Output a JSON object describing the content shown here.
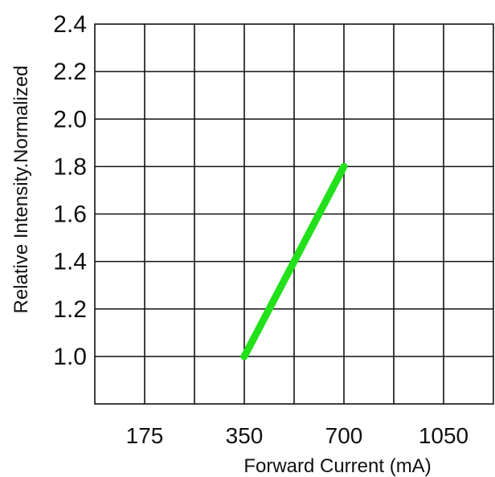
{
  "chart_data": {
    "type": "line",
    "title": "",
    "xlabel": "Forward  Current (mA)",
    "ylabel": "Relative Intensity.Normalized",
    "x_tick_labels": [
      "175",
      "350",
      "700",
      "1050"
    ],
    "y_ticks": [
      1.0,
      1.2,
      1.4,
      1.6,
      1.8,
      2.0,
      2.2,
      2.4
    ],
    "y_tick_labels": [
      "1.0",
      "1.2",
      "1.4",
      "1.6",
      "1.8",
      "2.0",
      "2.2",
      "2.4"
    ],
    "ylim": [
      0.8,
      2.4
    ],
    "grid": true,
    "series": [
      {
        "x": [
          350,
          700
        ],
        "y": [
          1.0,
          1.8
        ],
        "color": "#22e01a"
      }
    ]
  }
}
